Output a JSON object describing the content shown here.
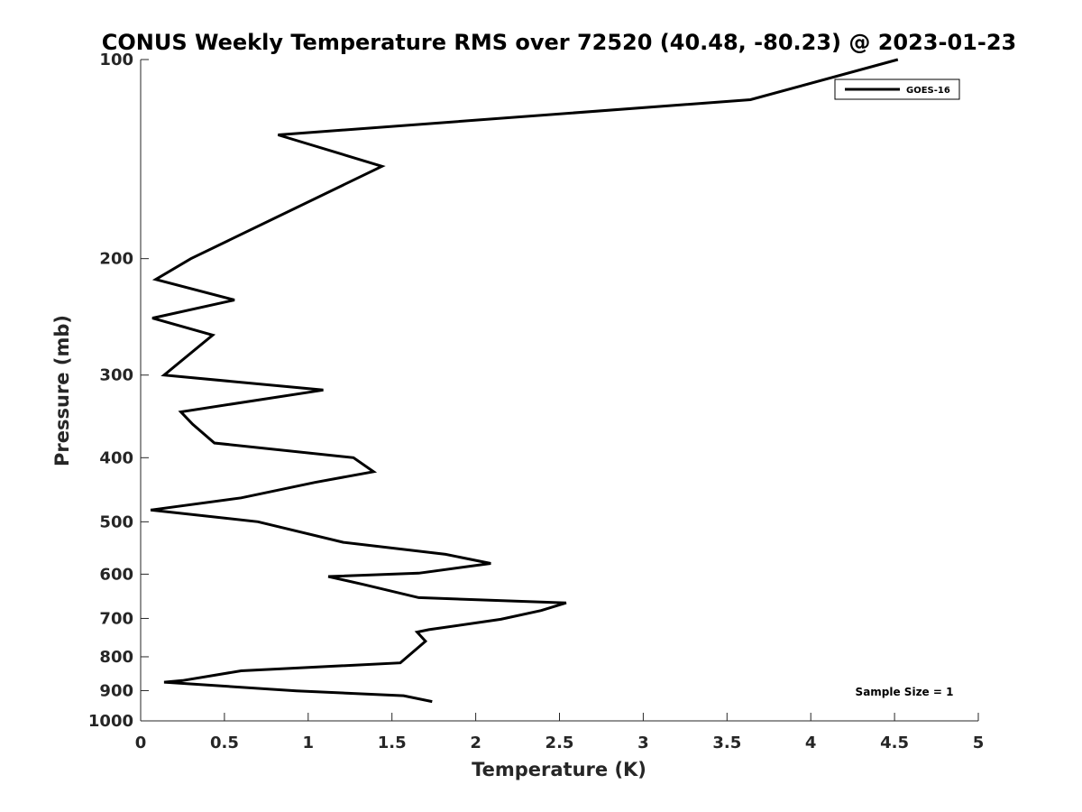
{
  "chart_data": {
    "type": "line",
    "title": "CONUS Weekly Temperature RMS over 72520 (40.48, -80.23) @ 2023-01-23",
    "xlabel": "Temperature (K)",
    "ylabel": "Pressure (mb)",
    "xlim": [
      0,
      5
    ],
    "ylim": [
      100,
      1000
    ],
    "y_scale": "log",
    "y_reversed": true,
    "x_ticks": [
      "0",
      "0.5",
      "1",
      "1.5",
      "2",
      "2.5",
      "3",
      "3.5",
      "4",
      "4.5",
      "5"
    ],
    "y_ticks": [
      "100",
      "200",
      "300",
      "400",
      "500",
      "600",
      "700",
      "800",
      "900",
      "1000"
    ],
    "grid": false,
    "legend_position": "top-right",
    "series": [
      {
        "name": "GOES-16",
        "color": "#000000",
        "x": [
          4.52,
          3.64,
          0.82,
          1.44,
          0.3,
          0.09,
          0.56,
          0.07,
          0.43,
          0.14,
          1.09,
          0.24,
          0.31,
          0.44,
          1.27,
          1.39,
          1.04,
          0.6,
          0.06,
          0.7,
          1.21,
          1.82,
          2.09,
          1.66,
          1.12,
          1.33,
          1.66,
          2.54,
          2.39,
          2.15,
          1.72,
          1.65,
          1.7,
          1.55,
          0.6,
          0.25,
          0.14,
          0.93,
          1.57,
          1.74
        ],
        "y": [
          100,
          115,
          130,
          145,
          200,
          215,
          231,
          246,
          261,
          300,
          316,
          341,
          356,
          380,
          400,
          420,
          436,
          460,
          480,
          500,
          537,
          560,
          578,
          598,
          605,
          622,
          651,
          663,
          681,
          702,
          728,
          734,
          758,
          817,
          840,
          869,
          874,
          901,
          916,
          935
        ]
      }
    ],
    "annotations": [
      "Sample Size = 1"
    ]
  }
}
